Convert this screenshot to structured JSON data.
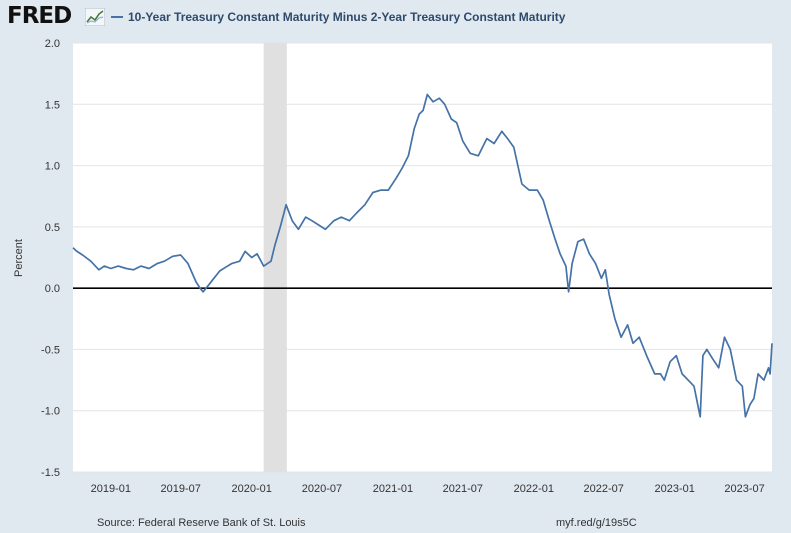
{
  "logo": {
    "text": "FRED"
  },
  "legend": {
    "label": "10-Year Treasury Constant Maturity Minus 2-Year Treasury Constant Maturity",
    "color": "#4572a7"
  },
  "footer": {
    "source": "Source: Federal Reserve Bank of St. Louis",
    "url": "myf.red/g/19s5C"
  },
  "chart_data": {
    "type": "line",
    "title": "",
    "xlabel": "",
    "ylabel": "Percent",
    "ylim": [
      -1.5,
      2.0
    ],
    "yticks": [
      "2.0",
      "1.5",
      "1.0",
      "0.5",
      "0.0",
      "-0.5",
      "-1.0",
      "-1.5"
    ],
    "xlim": [
      "2018-09-25",
      "2023-09-10"
    ],
    "xticks": [
      "2019-01",
      "2019-07",
      "2020-01",
      "2020-07",
      "2021-01",
      "2021-07",
      "2022-01",
      "2022-07",
      "2023-01",
      "2023-07"
    ],
    "grid": true,
    "legend_position": "top",
    "line_color": "#4572a7",
    "recession_band": [
      "2020-02",
      "2020-04"
    ],
    "zero_line": true,
    "series": [
      {
        "name": "10-Year Treasury Constant Maturity Minus 2-Year Treasury Constant Maturity",
        "x": [
          "2018-09-25",
          "2018-10-05",
          "2018-10-20",
          "2018-11-10",
          "2018-12-01",
          "2018-12-15",
          "2019-01-01",
          "2019-01-20",
          "2019-02-10",
          "2019-03-01",
          "2019-03-20",
          "2019-04-10",
          "2019-05-01",
          "2019-05-20",
          "2019-06-10",
          "2019-07-01",
          "2019-07-20",
          "2019-08-10",
          "2019-08-20",
          "2019-08-28",
          "2019-09-10",
          "2019-09-25",
          "2019-10-10",
          "2019-10-25",
          "2019-11-10",
          "2019-12-01",
          "2019-12-15",
          "2020-01-01",
          "2020-01-15",
          "2020-02-01",
          "2020-02-20",
          "2020-03-01",
          "2020-03-15",
          "2020-03-30",
          "2020-04-15",
          "2020-05-01",
          "2020-05-20",
          "2020-06-05",
          "2020-06-20",
          "2020-07-10",
          "2020-08-01",
          "2020-08-20",
          "2020-09-10",
          "2020-10-01",
          "2020-10-20",
          "2020-11-10",
          "2020-12-01",
          "2020-12-20",
          "2021-01-10",
          "2021-01-25",
          "2021-02-10",
          "2021-02-25",
          "2021-03-10",
          "2021-03-20",
          "2021-03-31",
          "2021-04-15",
          "2021-05-01",
          "2021-05-15",
          "2021-06-01",
          "2021-06-15",
          "2021-07-01",
          "2021-07-20",
          "2021-08-10",
          "2021-09-01",
          "2021-09-20",
          "2021-10-10",
          "2021-10-25",
          "2021-11-10",
          "2021-12-01",
          "2021-12-20",
          "2022-01-10",
          "2022-01-25",
          "2022-02-10",
          "2022-02-25",
          "2022-03-10",
          "2022-03-25",
          "2022-04-01",
          "2022-04-10",
          "2022-04-25",
          "2022-05-10",
          "2022-05-25",
          "2022-06-10",
          "2022-06-25",
          "2022-07-05",
          "2022-07-15",
          "2022-07-30",
          "2022-08-15",
          "2022-09-01",
          "2022-09-15",
          "2022-10-01",
          "2022-10-20",
          "2022-11-10",
          "2022-11-25",
          "2022-12-05",
          "2022-12-20",
          "2023-01-05",
          "2023-01-20",
          "2023-02-05",
          "2023-02-20",
          "2023-03-08",
          "2023-03-15",
          "2023-03-25",
          "2023-04-10",
          "2023-04-25",
          "2023-05-10",
          "2023-05-25",
          "2023-06-10",
          "2023-06-25",
          "2023-07-03",
          "2023-07-15",
          "2023-07-25",
          "2023-08-05",
          "2023-08-20",
          "2023-09-01",
          "2023-09-05",
          "2023-09-10"
        ],
        "y": [
          0.33,
          0.3,
          0.27,
          0.22,
          0.15,
          0.18,
          0.16,
          0.18,
          0.16,
          0.15,
          0.18,
          0.16,
          0.2,
          0.22,
          0.26,
          0.27,
          0.2,
          0.05,
          0.0,
          -0.03,
          0.02,
          0.08,
          0.14,
          0.17,
          0.2,
          0.22,
          0.3,
          0.25,
          0.28,
          0.18,
          0.22,
          0.35,
          0.5,
          0.68,
          0.55,
          0.48,
          0.58,
          0.55,
          0.52,
          0.48,
          0.55,
          0.58,
          0.55,
          0.62,
          0.68,
          0.78,
          0.8,
          0.8,
          0.9,
          0.98,
          1.08,
          1.3,
          1.42,
          1.45,
          1.58,
          1.52,
          1.55,
          1.5,
          1.38,
          1.35,
          1.2,
          1.1,
          1.08,
          1.22,
          1.18,
          1.28,
          1.22,
          1.15,
          0.85,
          0.8,
          0.8,
          0.72,
          0.55,
          0.4,
          0.28,
          0.18,
          -0.03,
          0.2,
          0.38,
          0.4,
          0.28,
          0.2,
          0.08,
          0.15,
          -0.05,
          -0.25,
          -0.4,
          -0.3,
          -0.45,
          -0.4,
          -0.55,
          -0.7,
          -0.7,
          -0.75,
          -0.6,
          -0.55,
          -0.7,
          -0.75,
          -0.8,
          -1.05,
          -0.55,
          -0.5,
          -0.58,
          -0.65,
          -0.4,
          -0.5,
          -0.75,
          -0.8,
          -1.05,
          -0.95,
          -0.9,
          -0.7,
          -0.75,
          -0.65,
          -0.7,
          -0.45
        ]
      }
    ]
  }
}
